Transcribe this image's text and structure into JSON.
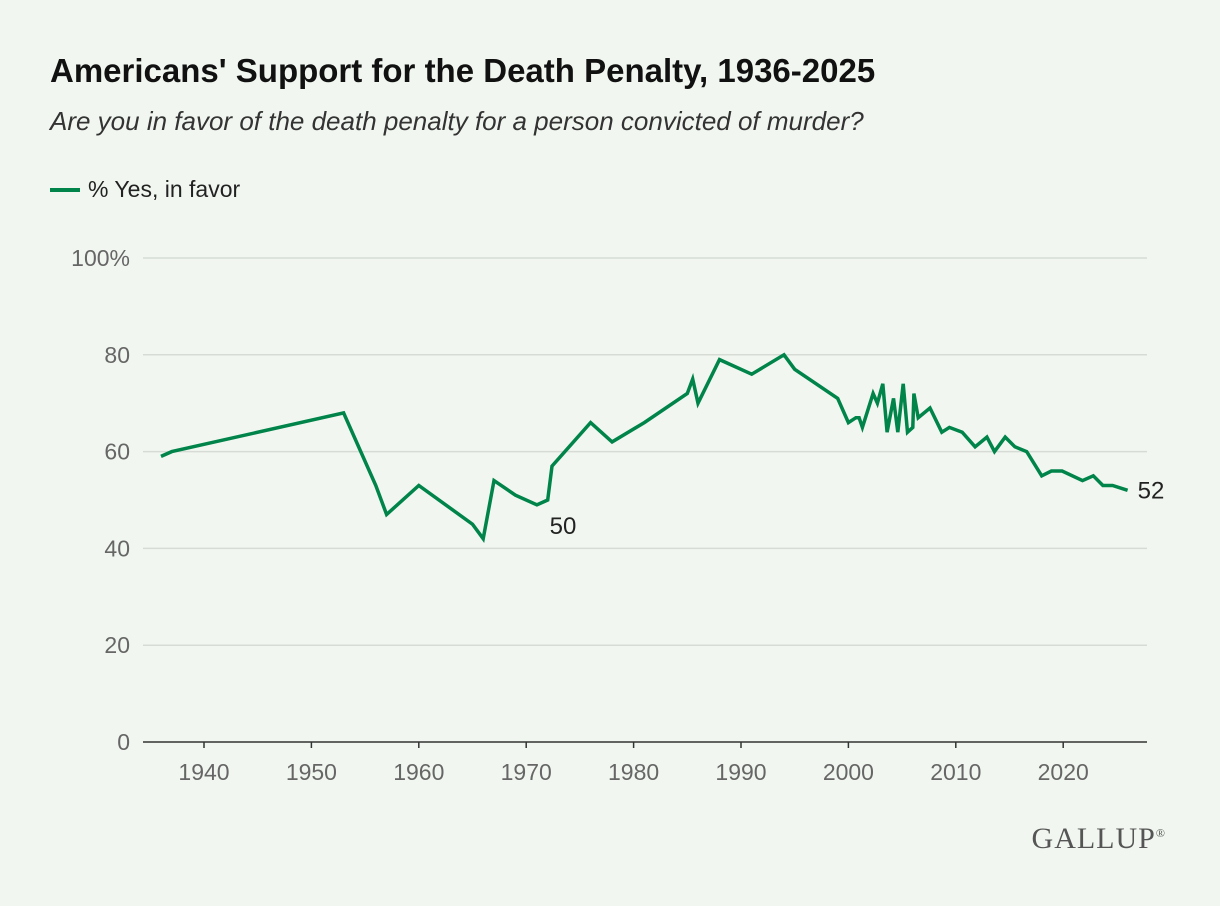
{
  "title": "Americans' Support for the Death Penalty, 1936-2025",
  "subtitle": "Are you in favor of the death penalty for a person convicted of murder?",
  "logo": "GALLUP",
  "logo_mark": "®",
  "colors": {
    "line": "#00844a",
    "grid": "#d6dcd5",
    "axis": "#333333"
  },
  "chart_data": {
    "type": "line",
    "title": "Americans' Support for the Death Penalty, 1936-2025",
    "xlabel": "",
    "ylabel": "",
    "ylim": [
      0,
      100
    ],
    "xlim": [
      1934,
      2028
    ],
    "grid": true,
    "legend_position": "top-left",
    "y_ticks": [
      {
        "v": 0,
        "label": "0"
      },
      {
        "v": 20,
        "label": "20"
      },
      {
        "v": 40,
        "label": "40"
      },
      {
        "v": 60,
        "label": "60"
      },
      {
        "v": 80,
        "label": "80"
      },
      {
        "v": 100,
        "label": "100%"
      }
    ],
    "x_ticks": [
      1940,
      1950,
      1960,
      1970,
      1980,
      1990,
      2000,
      2010,
      2020
    ],
    "series": [
      {
        "name": "% Yes, in favor",
        "x": [
          1936,
          1937,
          1953,
          1956,
          1957,
          1960,
          1965,
          1966,
          1967,
          1969,
          1971,
          1972,
          1972.4,
          1976,
          1978,
          1981,
          1985,
          1985.5,
          1986,
          1988,
          1991,
          1994,
          1995,
          1999,
          2000,
          2000.7,
          2001,
          2001.3,
          2002.3,
          2002.7,
          2003.2,
          2003.6,
          2004.2,
          2004.6,
          2005.1,
          2005.5,
          2006,
          2006.1,
          2006.5,
          2007.6,
          2008.7,
          2009.4,
          2010.6,
          2011.8,
          2012.9,
          2013.6,
          2014.6,
          2015.5,
          2016.6,
          2018,
          2018.9,
          2019.9,
          2021.8,
          2022.8,
          2023.7,
          2024.6,
          2026
        ],
        "values": [
          59,
          60,
          68,
          53,
          47,
          53,
          45,
          42,
          54,
          51,
          49,
          50,
          57,
          66,
          62,
          66,
          72,
          75,
          70,
          79,
          76,
          80,
          77,
          71,
          66,
          67,
          67,
          65,
          72,
          70,
          74,
          64,
          71,
          64,
          74,
          64,
          65,
          72,
          67,
          69,
          64,
          65,
          64,
          61,
          63,
          60,
          63,
          61,
          60,
          55,
          56,
          56,
          54,
          55,
          53,
          53,
          52
        ]
      }
    ],
    "annotations": [
      {
        "x": 1972,
        "y": 50,
        "label": "50"
      },
      {
        "x": 2026,
        "y": 52,
        "label": "52"
      }
    ]
  }
}
